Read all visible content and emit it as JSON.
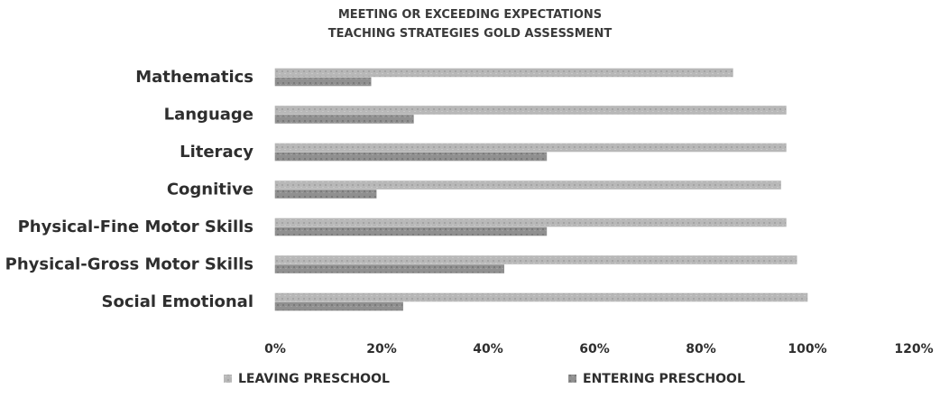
{
  "chart_data": {
    "type": "bar",
    "orientation": "horizontal",
    "title": [
      "MEETING OR EXCEEDING EXPECTATIONS",
      "TEACHING STRATEGIES GOLD ASSESSMENT"
    ],
    "categories": [
      "Mathematics",
      "Language",
      "Literacy",
      "Cognitive",
      "Physical-Fine Motor Skills",
      "Physical-Gross Motor Skills",
      "Social Emotional"
    ],
    "series": [
      {
        "name": "LEAVING PRESCHOOL",
        "values": [
          86,
          96,
          96,
          95,
          96,
          98,
          100
        ],
        "color": "#b3b3b3"
      },
      {
        "name": "ENTERING PRESCHOOL",
        "values": [
          18,
          26,
          51,
          19,
          51,
          43,
          24
        ],
        "color": "#8c8c8c"
      }
    ],
    "xlim": [
      0,
      120
    ],
    "xticks": [
      "0%",
      "20%",
      "40%",
      "60%",
      "80%",
      "100%",
      "120%"
    ],
    "xlabel": "",
    "ylabel": "",
    "grid": false,
    "legend_position": "bottom"
  }
}
